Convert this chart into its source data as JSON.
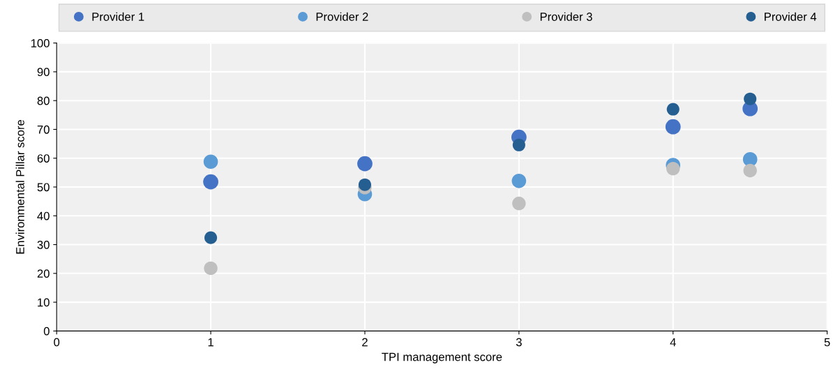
{
  "chart_data": {
    "type": "scatter",
    "xlabel": "TPI management score",
    "ylabel": "Environmental Pillar score",
    "x": [
      1,
      2,
      3,
      4,
      4.5
    ],
    "series": [
      {
        "name": "Provider 1",
        "color": "#4472c4",
        "values": [
          51.8,
          58.1,
          67.3,
          70.9,
          77.2
        ]
      },
      {
        "name": "Provider 2",
        "color": "#5b9bd5",
        "values": [
          58.8,
          47.5,
          52.1,
          57.6,
          59.6
        ]
      },
      {
        "name": "Provider 3",
        "color": "#bfbfbf",
        "values": [
          21.8,
          49.8,
          44.3,
          56.4,
          55.7
        ]
      },
      {
        "name": "Provider 4",
        "color": "#255e91",
        "values": [
          32.4,
          50.8,
          64.6,
          77.0,
          80.6
        ]
      }
    ],
    "xlim": [
      0,
      5
    ],
    "xticks": [
      0,
      1,
      2,
      3,
      4,
      5
    ],
    "ylim": [
      0,
      100
    ],
    "yticks": [
      0,
      10,
      20,
      30,
      40,
      50,
      60,
      70,
      80,
      90,
      100
    ],
    "grid": true,
    "legend": "top",
    "marker": "circle"
  }
}
